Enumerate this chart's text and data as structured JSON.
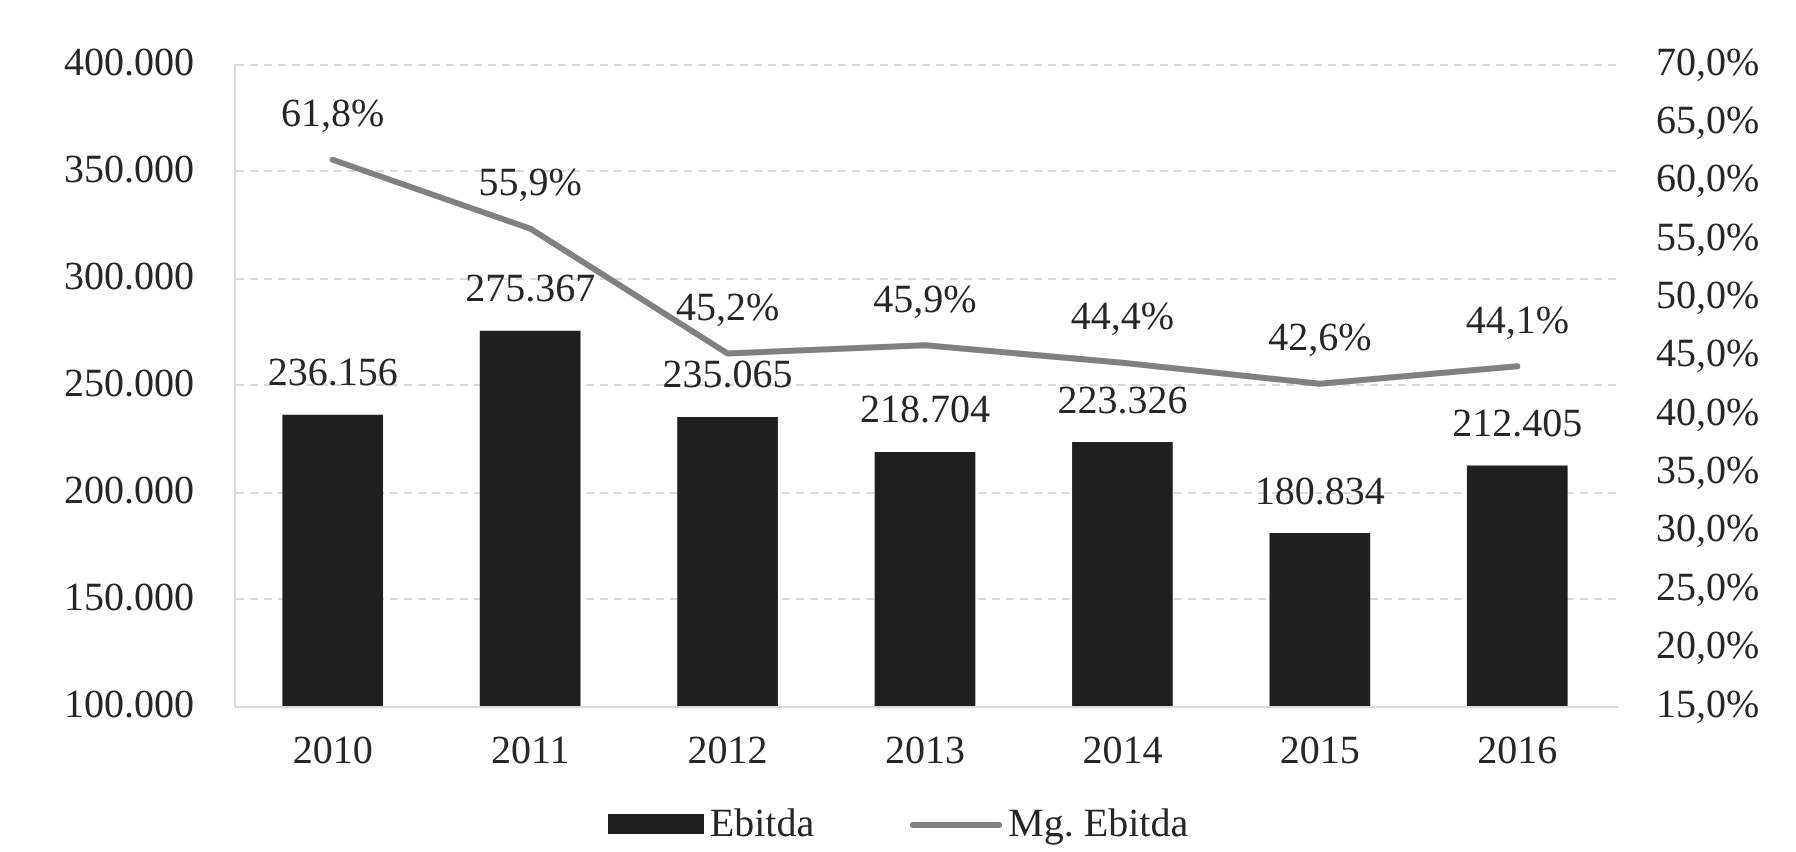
{
  "chart_data": {
    "type": "bar",
    "categories": [
      "2010",
      "2011",
      "2012",
      "2013",
      "2014",
      "2015",
      "2016"
    ],
    "series": [
      {
        "name": "Ebitda",
        "color": "#1f1f1f",
        "values": [
          236156,
          275367,
          235065,
          218704,
          223326,
          180834,
          212405
        ],
        "value_labels": [
          "236.156",
          "275.367",
          "235.065",
          "218.704",
          "223.326",
          "180.834",
          "212.405"
        ]
      },
      {
        "name": "Mg. Ebitda",
        "type": "line",
        "axis": "y2",
        "color": "#808080",
        "values": [
          61.8,
          55.9,
          45.2,
          45.9,
          44.4,
          42.6,
          44.1
        ],
        "value_labels": [
          "61,8%",
          "55,9%",
          "45,2%",
          "45,9%",
          "44,4%",
          "42,6%",
          "44,1%"
        ]
      }
    ],
    "ylim": [
      100000,
      400000
    ],
    "yticks": [
      {
        "value": 100000,
        "label": "100.000"
      },
      {
        "value": 150000,
        "label": "150.000"
      },
      {
        "value": 200000,
        "label": "200.000"
      },
      {
        "value": 250000,
        "label": "250.000"
      },
      {
        "value": 300000,
        "label": "300.000"
      },
      {
        "value": 350000,
        "label": "350.000"
      },
      {
        "value": 400000,
        "label": "400.000"
      }
    ],
    "y2lim": [
      15,
      70
    ],
    "y2ticks": [
      {
        "value": 15,
        "label": "15,0%"
      },
      {
        "value": 20,
        "label": "20,0%"
      },
      {
        "value": 25,
        "label": "25,0%"
      },
      {
        "value": 30,
        "label": "30,0%"
      },
      {
        "value": 35,
        "label": "35,0%"
      },
      {
        "value": 40,
        "label": "40,0%"
      },
      {
        "value": 45,
        "label": "45,0%"
      },
      {
        "value": 50,
        "label": "50,0%"
      },
      {
        "value": 55,
        "label": "55,0%"
      },
      {
        "value": 60,
        "label": "60,0%"
      },
      {
        "value": 65,
        "label": "65,0%"
      },
      {
        "value": 70,
        "label": "70,0%"
      }
    ],
    "grid": "y",
    "legend": "bottom",
    "line_style": "solid"
  }
}
